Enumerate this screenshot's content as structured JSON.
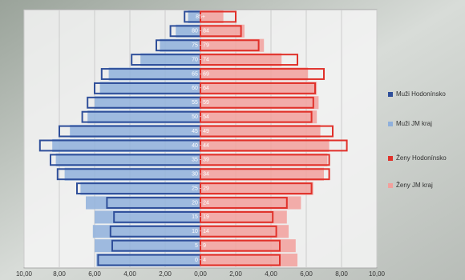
{
  "chart_data": {
    "type": "pyramid",
    "categories": [
      "0 - 4",
      "5 - 9",
      "10 - 14",
      "15 - 19",
      "20 - 24",
      "25 - 29",
      "30 - 34",
      "35 - 39",
      "40 - 44",
      "45 - 49",
      "50 - 54",
      "55 - 59",
      "60 - 64",
      "65 - 69",
      "70 - 74",
      "75 - 79",
      "80 - 84",
      "85+"
    ],
    "series": [
      {
        "name": "Muži JM kraj",
        "color": "#8fb0dc",
        "style": "fill",
        "values": [
          -5.9,
          -6.0,
          -6.1,
          -6.0,
          -6.5,
          -6.8,
          -7.7,
          -8.2,
          -8.4,
          -7.4,
          -6.4,
          -6.0,
          -5.7,
          -5.2,
          -3.4,
          -2.3,
          -1.4,
          -0.7
        ]
      },
      {
        "name": "Ženy JM kraj",
        "color": "#f2a09c",
        "style": "fill",
        "values": [
          5.5,
          5.4,
          5.0,
          4.9,
          5.7,
          6.4,
          7.0,
          7.2,
          7.3,
          6.8,
          6.6,
          6.7,
          6.6,
          6.1,
          4.6,
          3.6,
          2.5,
          1.3
        ]
      },
      {
        "name": "Muži Hodonínsko",
        "color": "#2f4f9a",
        "style": "outline",
        "values": [
          -5.8,
          -5.0,
          -5.1,
          -4.9,
          -5.3,
          -7.0,
          -8.1,
          -8.5,
          -9.1,
          -8.0,
          -6.7,
          -6.4,
          -6.0,
          -5.6,
          -3.9,
          -2.5,
          -1.7,
          -0.9
        ]
      },
      {
        "name": "Ženy Hodonínsko",
        "color": "#e0312a",
        "style": "outline",
        "values": [
          4.5,
          4.5,
          4.3,
          4.1,
          4.9,
          6.3,
          7.3,
          7.3,
          8.3,
          7.5,
          6.3,
          6.4,
          6.5,
          7.0,
          5.5,
          3.3,
          2.3,
          2.0
        ]
      }
    ],
    "legend_order": [
      2,
      0,
      3,
      1
    ],
    "xlim": [
      -10,
      10
    ],
    "xticks": [
      {
        "value": -10,
        "label": "10,00"
      },
      {
        "value": -8,
        "label": "8,00"
      },
      {
        "value": -6,
        "label": "6,00"
      },
      {
        "value": -4,
        "label": "4,00"
      },
      {
        "value": -2,
        "label": "2,00"
      },
      {
        "value": 0,
        "label": "0,00"
      },
      {
        "value": 2,
        "label": "2,00"
      },
      {
        "value": 4,
        "label": "4,00"
      },
      {
        "value": 6,
        "label": "6,00"
      },
      {
        "value": 8,
        "label": "8,00"
      },
      {
        "value": 10,
        "label": "10,00"
      }
    ],
    "grid": true
  }
}
